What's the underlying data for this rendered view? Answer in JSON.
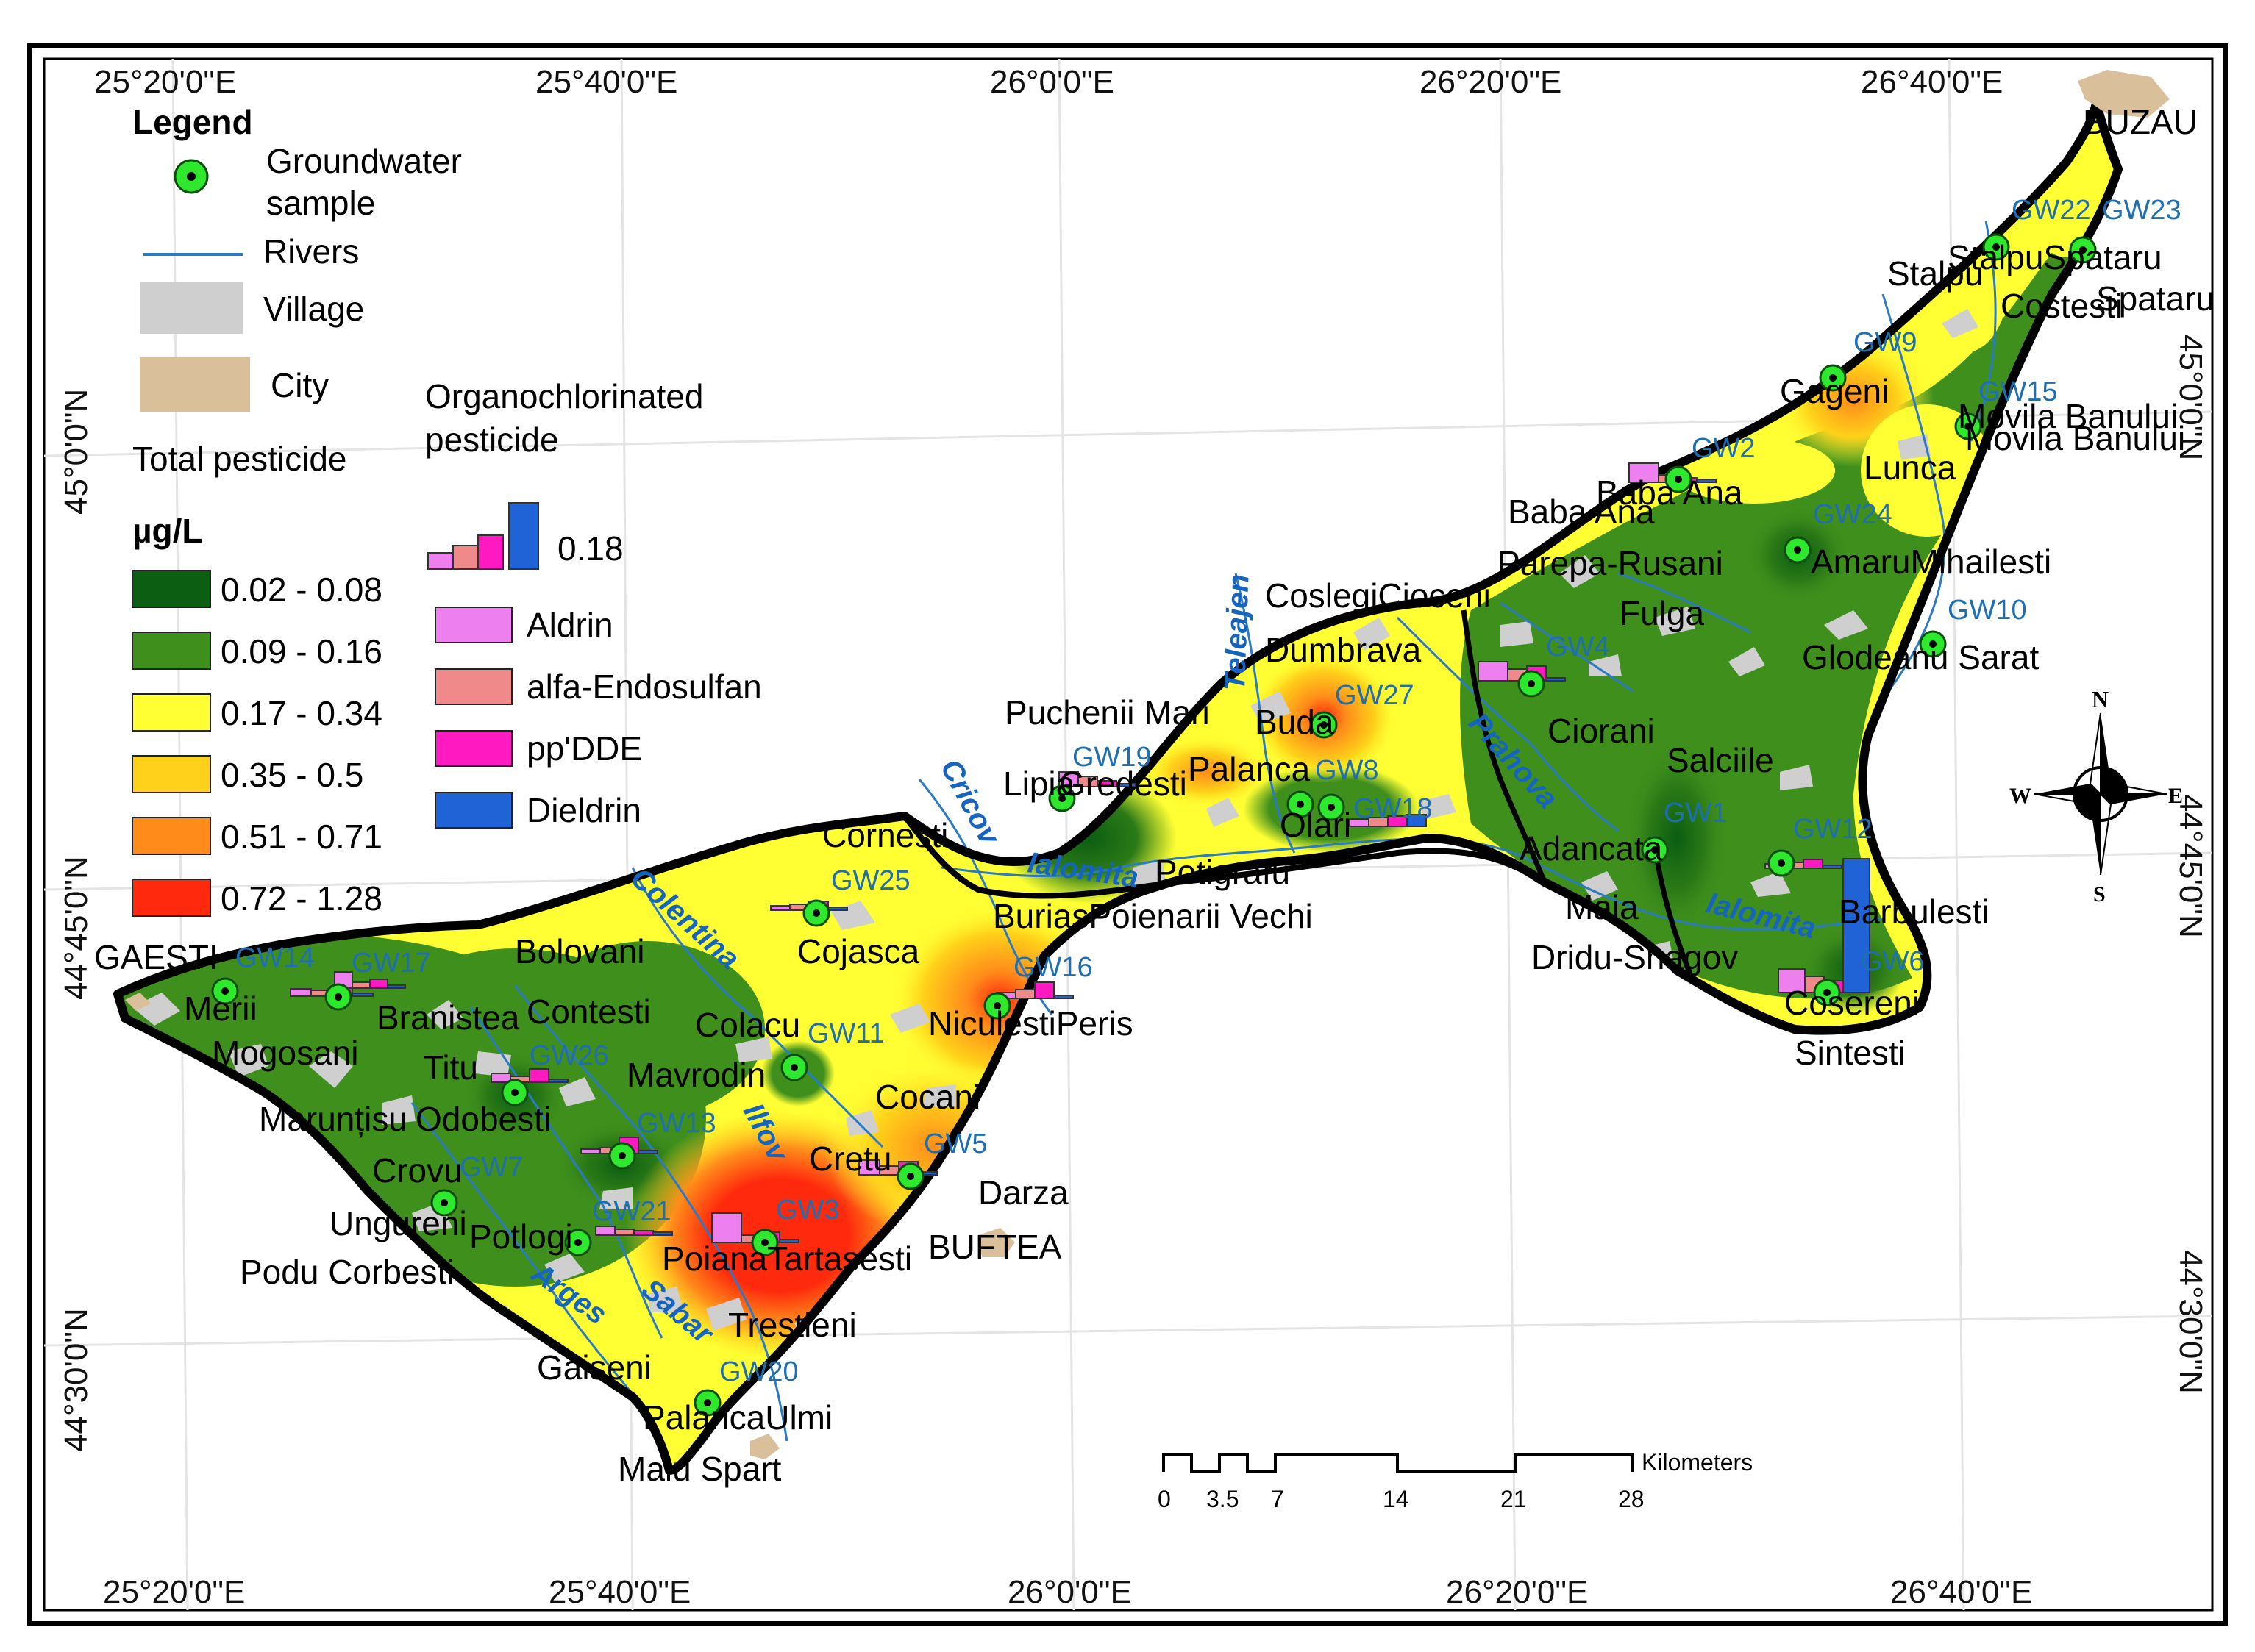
{
  "legend": {
    "title": "Legend",
    "groundwater_sample": "Groundwater sample",
    "groundwater_line1": "Groundwater",
    "groundwater_line2": "sample",
    "rivers": "Rivers",
    "village": "Village",
    "city": "City",
    "total_pesticide": "Total pesticide",
    "unit": "µg/L",
    "classes": [
      {
        "range": "0.02 - 0.08",
        "color": "#0b5e12"
      },
      {
        "range": "0.09 - 0.16",
        "color": "#3f8f1d"
      },
      {
        "range": "0.17 - 0.34",
        "color": "#ffff33"
      },
      {
        "range": "0.35 - 0.5",
        "color": "#ffd11a"
      },
      {
        "range": "0.51 - 0.71",
        "color": "#ff8c1a"
      },
      {
        "range": "0.72 - 1.28",
        "color": "#ff2a0d"
      }
    ],
    "organo_line1": "Organochlorinated",
    "organo_line2": "pesticide",
    "organo_value": "0.18",
    "pesticides": [
      {
        "name": "Aldrin",
        "color": "#ee7fee"
      },
      {
        "name": "alfa-Endosulfan",
        "color": "#f08a8a"
      },
      {
        "name": "pp'DDE",
        "color": "#ff19c0"
      },
      {
        "name": "Dieldrin",
        "color": "#1f63d6"
      }
    ]
  },
  "graticule": {
    "top": [
      "25°20'0\"E",
      "25°40'0\"E",
      "26°0'0\"E",
      "26°20'0\"E",
      "26°40'0\"E"
    ],
    "bottom": [
      "25°20'0\"E",
      "25°40'0\"E",
      "26°0'0\"E",
      "26°20'0\"E",
      "26°40'0\"E"
    ],
    "left": [
      "45°0'0\"N",
      "44°45'0\"N",
      "44°30'0\"N"
    ],
    "right": [
      "45°0'0\"N",
      "44°45'0\"N",
      "44°30'0\"N"
    ]
  },
  "scale_bar": {
    "ticks": [
      "0",
      "3.5",
      "7",
      "14",
      "21",
      "28"
    ],
    "unit": "Kilometers"
  },
  "north_arrow": {
    "n": "N",
    "s": "S",
    "e": "E",
    "w": "W"
  },
  "rivers": [
    "Colentina",
    "Ilfov",
    "Arges",
    "Sabar",
    "Cricov",
    "Ialomita",
    "Teleajen",
    "Prahova",
    "Ialomita"
  ],
  "cities": [
    "GAESTI",
    "BUFTEA",
    "BUZAU"
  ],
  "villages": [
    "Merii",
    "Mogosani",
    "Branistea",
    "Contesti",
    "Bolovani",
    "Titu",
    "Marunțisu",
    "Odobesti",
    "Crovu",
    "Ungureni",
    "Podu Corbesti",
    "Potlogi",
    "Gaiseni",
    "PalancaUlmi",
    "Malu Spart",
    "Trestieni",
    "PoianaTartasesti",
    "Colacu",
    "Mavrodin",
    "Cretu",
    "Cojasca",
    "Cornesti",
    "Cocani",
    "Darza",
    "NiculestiPeris",
    "BuriasPoienarii Vechi",
    "Potigrafu",
    "Lipia",
    "Gredesti",
    "Puchenii Mari",
    "Buda",
    "Palanca",
    "Olari",
    "Dumbrava",
    "CoslegiCioceni",
    "Parepa-Rusani",
    "Baba Ana",
    "Baba Ana",
    "Fulga",
    "Ciorani",
    "Salciile",
    "Adancata",
    "Maia",
    "Dridu-Snagov",
    "Barbulesti",
    "Cosereni",
    "Sintesti",
    "Glodeanu Sarat",
    "AmaruMihailesti",
    "Lunca",
    "Gageni",
    "Movila Banului",
    "Movila Banului",
    "Costesti",
    "StalpuSpataru",
    "Stalpu",
    "Spataru"
  ],
  "samples": [
    "GW14",
    "GW17",
    "GW26",
    "GW13",
    "GW7",
    "GW21",
    "GW20",
    "GW3",
    "GW5",
    "GW11",
    "GW25",
    "GW16",
    "GW19",
    "GW8",
    "GW18",
    "GW27",
    "GW4",
    "GW1",
    "GW12",
    "GW6",
    "GW2",
    "GW24",
    "GW9",
    "GW15",
    "GW10",
    "GW22",
    "GW23"
  ]
}
